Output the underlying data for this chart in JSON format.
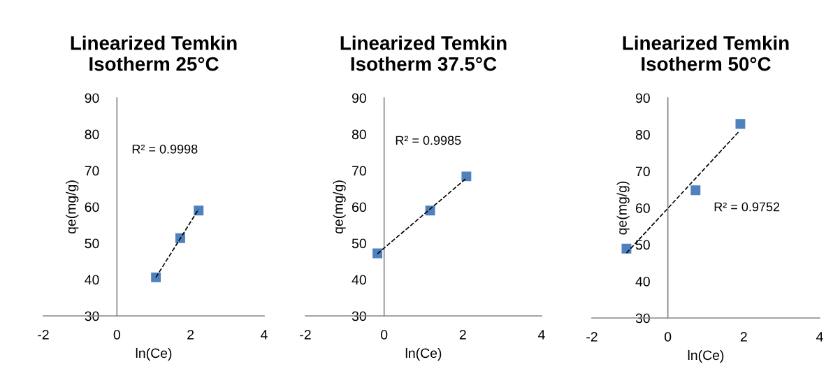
{
  "chart_data": [
    {
      "type": "scatter",
      "title": "Linearized Temkin\nIsotherm 25°C",
      "xlabel": "ln(Ce)",
      "ylabel": "qe(mg/g)",
      "xlim": [
        -2,
        4
      ],
      "xticks": [
        -2,
        0,
        2,
        4
      ],
      "ylim": [
        30,
        90
      ],
      "yticks": [
        30,
        40,
        50,
        60,
        70,
        80,
        90
      ],
      "annotations": [
        "R² = 0.9998"
      ],
      "series": [
        {
          "color": "#4f81bd",
          "marker": "square",
          "x": [
            1.06,
            1.72,
            2.22
          ],
          "values": [
            40.6,
            51.4,
            59.0
          ]
        },
        {
          "type": "line",
          "color": "#000000",
          "marker": "none",
          "line_style": "dashed",
          "x": [
            1.06,
            2.22
          ],
          "values": [
            40.6,
            59.4
          ]
        }
      ]
    },
    {
      "type": "scatter",
      "title": "Linearized Temkin\nIsotherm 37.5°C",
      "xlabel": "ln(Ce)",
      "ylabel": "qe(mg/g)",
      "xlim": [
        -2,
        4
      ],
      "xticks": [
        -2,
        0,
        2,
        4
      ],
      "ylim": [
        30,
        90
      ],
      "yticks": [
        30,
        40,
        50,
        60,
        70,
        80,
        90
      ],
      "annotations": [
        "R² = 0.9985"
      ],
      "series": [
        {
          "color": "#4f81bd",
          "marker": "square",
          "x": [
            -0.17,
            1.17,
            2.09
          ],
          "values": [
            47.2,
            59.0,
            68.4
          ]
        },
        {
          "type": "line",
          "color": "#000000",
          "marker": "none",
          "line_style": "dashed",
          "x": [
            -0.17,
            2.07
          ],
          "values": [
            47.1,
            67.7
          ]
        }
      ]
    },
    {
      "type": "scatter",
      "title": "Linearized Temkin\nIsotherm 50°C",
      "xlabel": "ln(Ce)",
      "ylabel": "qe(mg/g)",
      "xlim": [
        -2,
        4
      ],
      "xticks": [
        -2,
        0,
        2,
        4
      ],
      "ylim": [
        30,
        90
      ],
      "yticks": [
        30,
        40,
        50,
        60,
        70,
        80,
        90
      ],
      "annotations": [
        "R² = 0.9752"
      ],
      "series": [
        {
          "color": "#4f81bd",
          "marker": "square",
          "x": [
            -1.09,
            0.73,
            1.91
          ],
          "values": [
            48.9,
            64.8,
            82.9
          ]
        },
        {
          "type": "line",
          "color": "#000000",
          "marker": "none",
          "line_style": "dashed",
          "x": [
            -1.09,
            1.87
          ],
          "values": [
            47.7,
            80.8
          ]
        }
      ]
    }
  ]
}
